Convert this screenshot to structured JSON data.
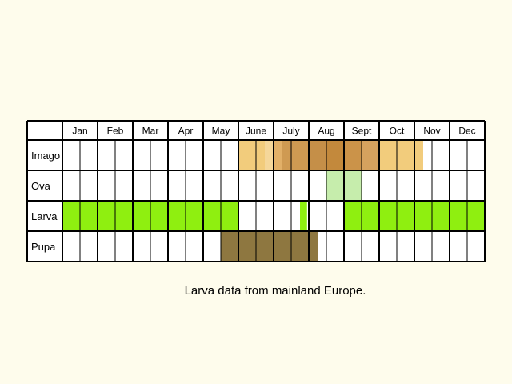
{
  "chart_data": {
    "type": "table",
    "months": [
      "Jan",
      "Feb",
      "Mar",
      "Apr",
      "May",
      "June",
      "July",
      "Aug",
      "Sept",
      "Oct",
      "Nov",
      "Dec"
    ],
    "rows": [
      {
        "label": "Imago",
        "segments": [
          {
            "start": 5.0,
            "end": 5.75,
            "color": "#f2cc7c"
          },
          {
            "start": 5.75,
            "end": 6.0,
            "color": "#f5d79a"
          },
          {
            "start": 6.0,
            "end": 6.25,
            "color": "#e2b068"
          },
          {
            "start": 6.25,
            "end": 7.0,
            "color": "#cf9a52"
          },
          {
            "start": 7.0,
            "end": 7.5,
            "color": "#c58f48"
          },
          {
            "start": 7.5,
            "end": 8.0,
            "color": "#c3893c"
          },
          {
            "start": 8.0,
            "end": 8.5,
            "color": "#cb9349"
          },
          {
            "start": 8.5,
            "end": 9.0,
            "color": "#d6a25e"
          },
          {
            "start": 9.0,
            "end": 10.25,
            "color": "#f2cc7c"
          }
        ]
      },
      {
        "label": "Ova",
        "segments": [
          {
            "start": 7.5,
            "end": 8.5,
            "color": "#c6edac"
          }
        ]
      },
      {
        "label": "Larva",
        "segments": [
          {
            "start": 0.0,
            "end": 5.0,
            "color": "#8fef10"
          },
          {
            "start": 6.75,
            "end": 6.95,
            "color": "#8fef10"
          },
          {
            "start": 8.0,
            "end": 12.0,
            "color": "#8fef10"
          }
        ]
      },
      {
        "label": "Pupa",
        "segments": [
          {
            "start": 4.5,
            "end": 7.25,
            "color": "#8e7740"
          }
        ]
      }
    ],
    "caption": "Larva data from mainland Europe.",
    "colors": {
      "background": "#fefcec",
      "grid": "#000000",
      "cell": "#ffffff"
    }
  }
}
